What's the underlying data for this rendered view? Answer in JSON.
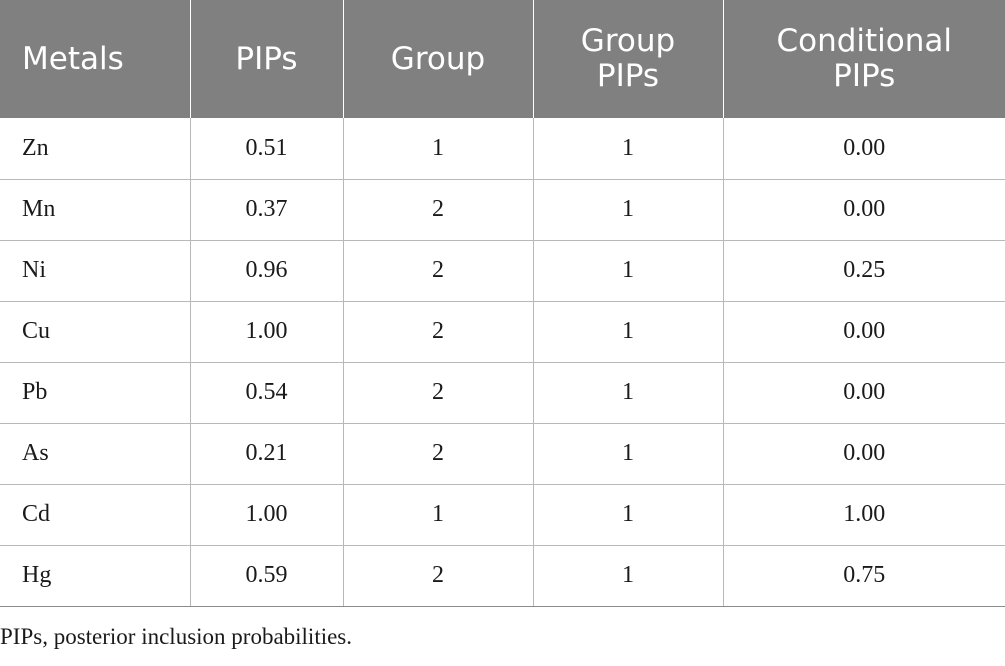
{
  "table": {
    "headers": [
      {
        "line1": "Metals",
        "line2": ""
      },
      {
        "line1": "PIPs",
        "line2": ""
      },
      {
        "line1": "Group",
        "line2": ""
      },
      {
        "line1": "Group",
        "line2": "PIPs"
      },
      {
        "line1": "Conditional",
        "line2": "PIPs"
      }
    ],
    "rows": [
      [
        "Zn",
        "0.51",
        "1",
        "1",
        "0.00"
      ],
      [
        "Mn",
        "0.37",
        "2",
        "1",
        "0.00"
      ],
      [
        "Ni",
        "0.96",
        "2",
        "1",
        "0.25"
      ],
      [
        "Cu",
        "1.00",
        "2",
        "1",
        "0.00"
      ],
      [
        "Pb",
        "0.54",
        "2",
        "1",
        "0.00"
      ],
      [
        "As",
        "0.21",
        "2",
        "1",
        "0.00"
      ],
      [
        "Cd",
        "1.00",
        "1",
        "1",
        "1.00"
      ],
      [
        "Hg",
        "0.59",
        "2",
        "1",
        "0.75"
      ]
    ]
  },
  "footnote": "PIPs, posterior inclusion probabilities.",
  "colors": {
    "header_bg": "#7f807f",
    "header_text": "#ffffff",
    "grid": "#b8b8b8"
  }
}
